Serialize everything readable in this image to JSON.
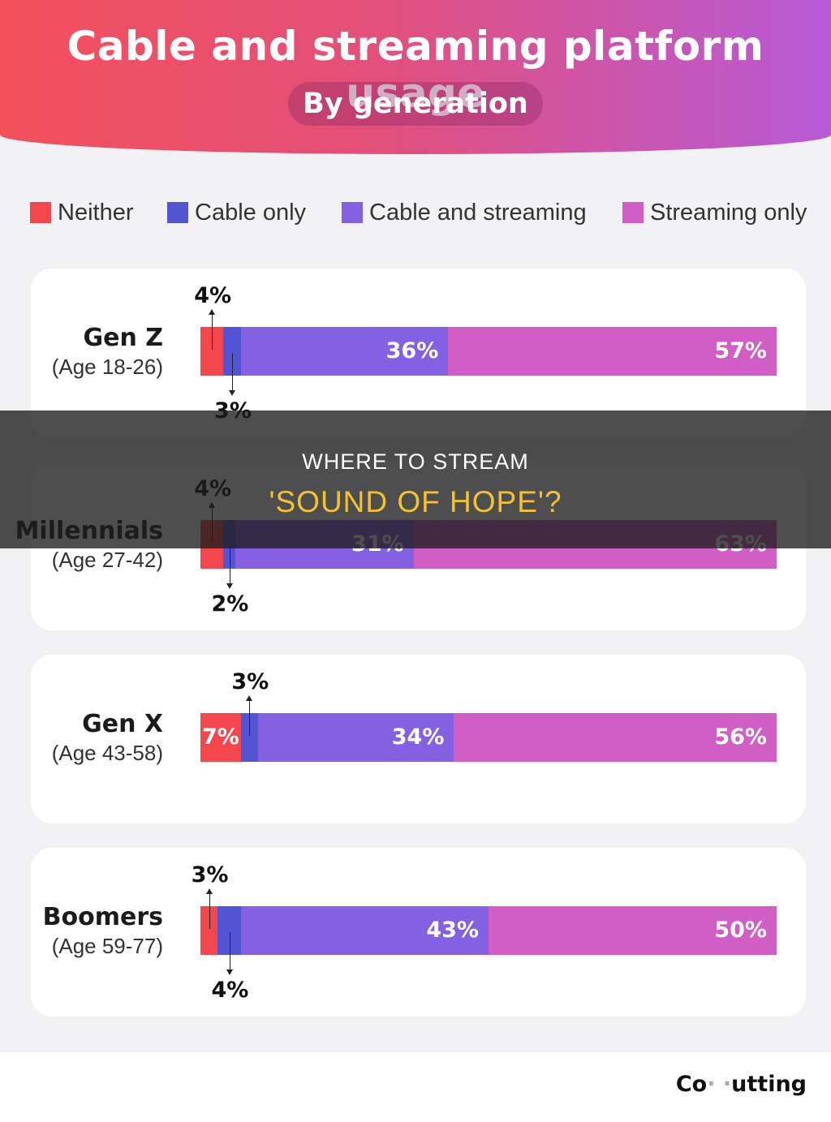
{
  "colors": {
    "neither": "#f3474d",
    "cable_only": "#5354d4",
    "cable_and_streaming": "#8460e3",
    "streaming_only": "#d05ec5"
  },
  "chart_data": {
    "type": "bar",
    "stacked": true,
    "orientation": "horizontal",
    "title": "Cable and streaming platform usage",
    "subtitle": "By generation",
    "legend_position": "top",
    "categories": [
      "Gen Z",
      "Millennials",
      "Gen X",
      "Boomers"
    ],
    "category_subtitles": [
      "(Age 18-26)",
      "(Age 27-42)",
      "(Age 43-58)",
      "(Age 59-77)"
    ],
    "series": [
      {
        "name": "Neither",
        "values": [
          4,
          4,
          7,
          3
        ],
        "labels": [
          "4%",
          "4%",
          "7%",
          "3%"
        ]
      },
      {
        "name": "Cable only",
        "values": [
          3,
          2,
          3,
          4
        ],
        "labels": [
          "3%",
          "2%",
          "3%",
          "4%"
        ]
      },
      {
        "name": "Cable and streaming",
        "values": [
          36,
          31,
          34,
          43
        ],
        "labels": [
          "36%",
          "31%",
          "34%",
          "43%"
        ]
      },
      {
        "name": "Streaming only",
        "values": [
          57,
          63,
          56,
          50
        ],
        "labels": [
          "57%",
          "63%",
          "56%",
          "50%"
        ]
      }
    ],
    "xlim": [
      0,
      100
    ]
  },
  "overlay": {
    "line1": "WHERE TO STREAM",
    "line2": "'SOUND OF HOPE'?"
  },
  "footer": {
    "brand": "Co ̶ ̶uttiing"
  }
}
